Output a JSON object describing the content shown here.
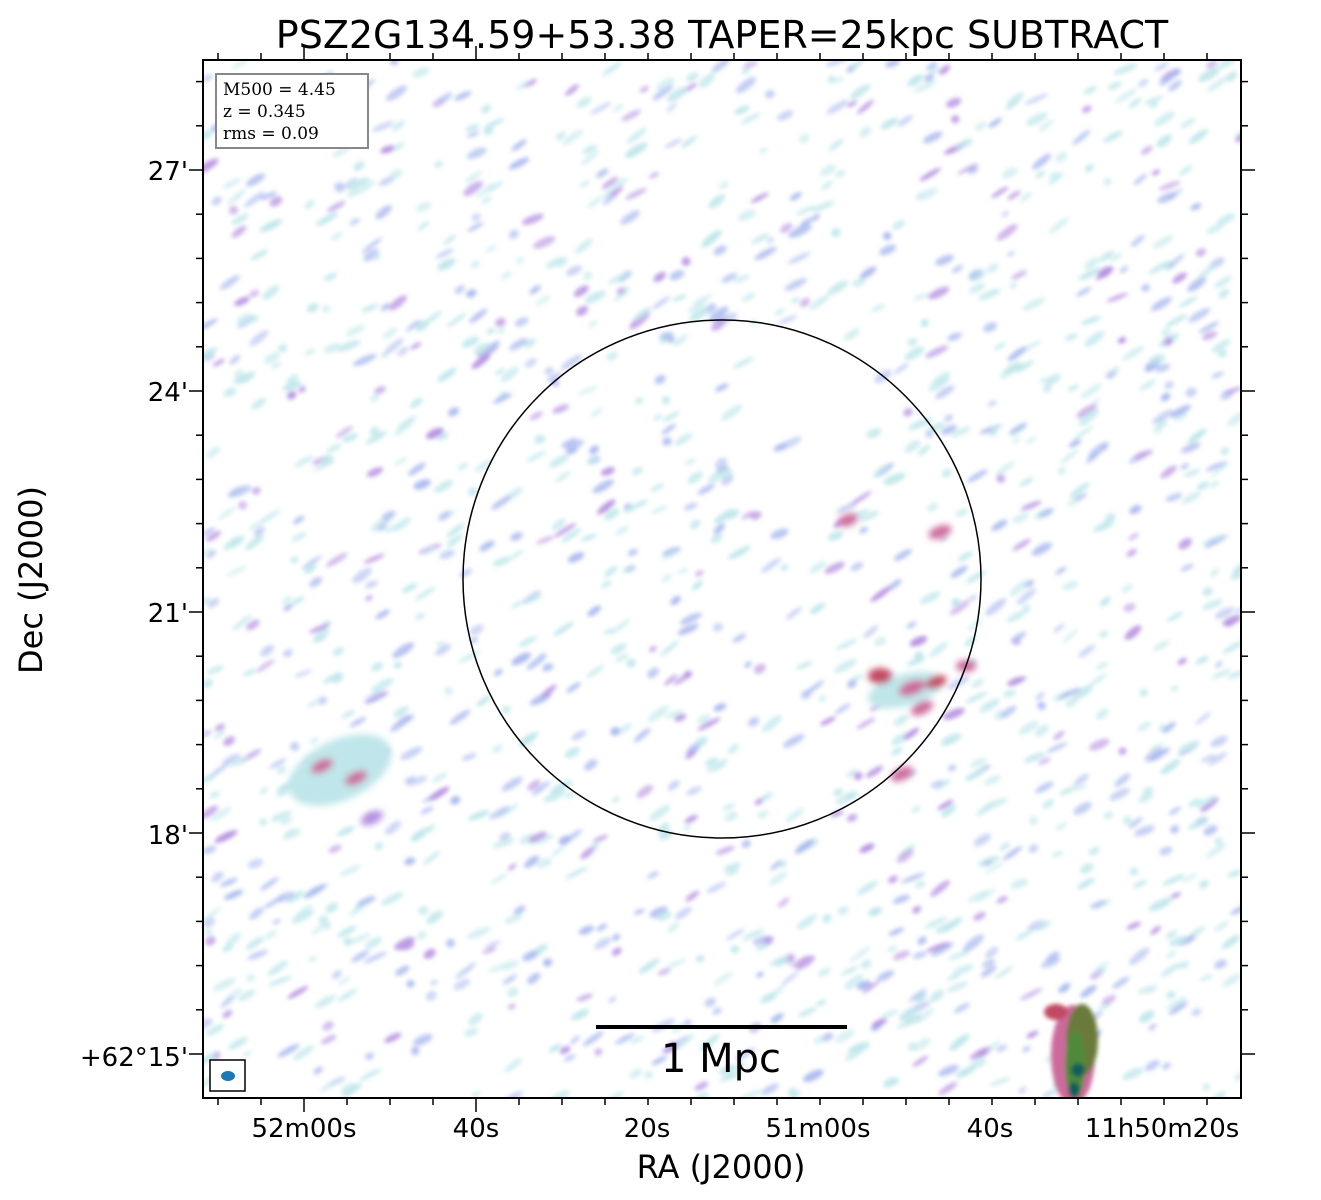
{
  "chart_data": {
    "type": "heatmap",
    "title": "PSZ2G134.59+53.38 TAPER=25kpc SUBTRACT",
    "xlabel": "RA (J2000)",
    "ylabel": "Dec (J2000)",
    "x_tick_labels": [
      "52m00s",
      "40s",
      "20s",
      "51m00s",
      "40s",
      "11h50m20s"
    ],
    "y_tick_labels": [
      "27'",
      "24'",
      "21'",
      "18'",
      "+62°15'"
    ],
    "info_box": [
      "M500 = 4.45",
      "z = 0.345",
      "rms = 0.09"
    ],
    "scale_bar_label": "1 Mpc",
    "colors": {
      "noise_light": "#bfe6ea",
      "noise_blue": "#a9b8ee",
      "noise_purple": "#b58fe0",
      "emission_pink": "#cc6b9c",
      "emission_red": "#c24a63",
      "source_green": "#4f8a3a",
      "source_teal": "#0f5e5a",
      "beam": "#1f77b4"
    }
  }
}
